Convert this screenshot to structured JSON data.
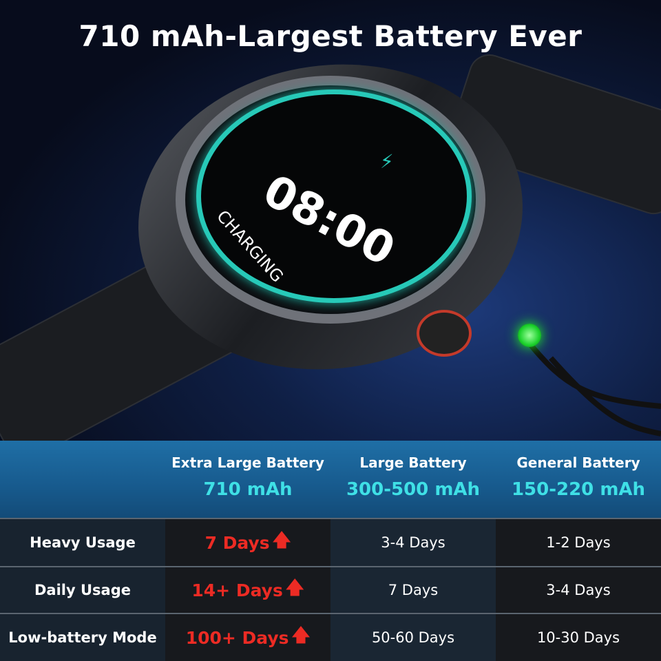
{
  "title": "710 mAh-Largest Battery Ever",
  "watch": {
    "time": "08:00",
    "status": "CHARGING",
    "icon": "lightning-bolt-icon",
    "ring_color": "#27c9b8",
    "led_color": "#1bd12b"
  },
  "table": {
    "columns": [
      {
        "name": "Extra Large Battery",
        "capacity": "710 mAh"
      },
      {
        "name": "Large Battery",
        "capacity": "300-500 mAh"
      },
      {
        "name": "General Battery",
        "capacity": "150-220 mAh"
      }
    ],
    "rows": [
      {
        "label": "Heavy Usage",
        "values": [
          "7 Days",
          "3-4 Days",
          "1-2 Days"
        ]
      },
      {
        "label": "Daily Usage",
        "values": [
          "14+ Days",
          "7 Days",
          "3-4 Days"
        ]
      },
      {
        "label": "Low-battery Mode",
        "values": [
          "100+ Days",
          "50-60 Days",
          "10-30 Days"
        ]
      }
    ],
    "highlight_color": "#ec2b24",
    "capacity_color": "#3fe0e6"
  }
}
